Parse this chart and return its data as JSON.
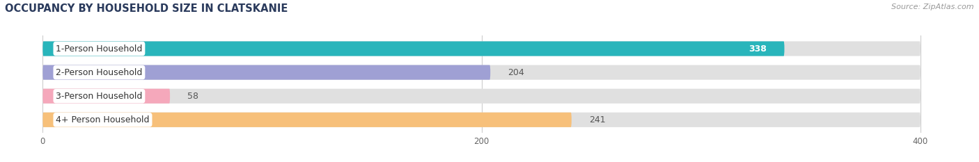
{
  "title": "OCCUPANCY BY HOUSEHOLD SIZE IN CLATSKANIE",
  "source": "Source: ZipAtlas.com",
  "categories": [
    "1-Person Household",
    "2-Person Household",
    "3-Person Household",
    "4+ Person Household"
  ],
  "values": [
    338,
    204,
    58,
    241
  ],
  "bar_colors": [
    "#29b5bb",
    "#9fa0d4",
    "#f5a8bb",
    "#f7c07a"
  ],
  "xlim": [
    0,
    400
  ],
  "xticks": [
    0,
    200,
    400
  ],
  "title_fontsize": 10.5,
  "source_fontsize": 8,
  "label_fontsize": 9,
  "value_fontsize": 9,
  "bar_bg_color": "#e0e0e0",
  "bar_height": 0.62,
  "white_bg": "#ffffff",
  "grid_color": "#cccccc",
  "text_dark": "#555555",
  "text_white": "#ffffff"
}
